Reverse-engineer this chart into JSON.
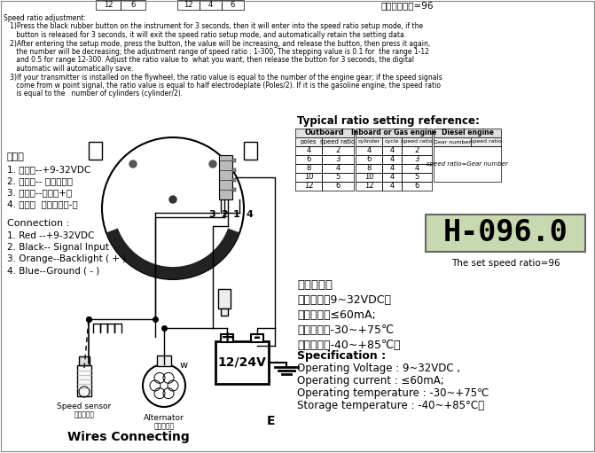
{
  "bg_color": "#ffffff",
  "title": "Wires Connecting",
  "subtitle_e": "E",
  "top_table_left_headers": [
    "12",
    "6"
  ],
  "top_table_right_headers": [
    "12",
    "4",
    "6"
  ],
  "top_right_text": "表示设置速比=96",
  "speed_ratio_lines": [
    "Speed ratio adjustment:",
    "   1)Press the black rubber button on the instrument for 3 seconds, then it will enter into the speed ratio setup mode, if the",
    "      button is released for 3 seconds, it will exit the speed ratio setup mode, and automatically retain the setting data.",
    "   2)After entering the setup mode, press the button, the value will be increasing, and release the button, then press it again,",
    "      the number will be decreasing; the adjustment range of speed ratio : 1-300, The stepping value is 0.1 for  the range 1-12",
    "      and 0.5 for range 12-300. Adjust the ratio value to  what you want, then release the button for 3 seconds, the digital",
    "      automatic will automatically save.",
    "   3)If your transmitter is installed on the flywheel, the ratio value is equal to the number of the engine gear; if the speed signals",
    "      come from w point signal, the ratio value is equal to half electrodeplate (Poles/2). If it is the gasoline engine, the speed ratio",
    "      is equal to the   number of cylinders (cylinder/2)."
  ],
  "chinese_header": "接线：",
  "chinese_labels": [
    "1. 红色线--+9-32VDC",
    "2. 黑色线-- 传感器信号",
    "3. 橙色线--背光（+）",
    "4. 蓝色线  电源负极（-）"
  ],
  "conn_header": "Connection :",
  "english_labels": [
    "1. Red --+9-32VDC",
    "2. Black-- Signal Input",
    "3. Orange--Backlight ( + )",
    "4. Blue--Ground ( - )"
  ],
  "speed_sensor_label": "Speed sensor",
  "speed_sensor_cn": "转速传感器",
  "alternator_label": "Alternator",
  "alternator_cn": "交流发电机",
  "w_label": "w",
  "voltage_label": "12/24V",
  "typical_title": "Typical ratio setting reference:",
  "outboard_header": "Outboard",
  "outboard_cols": [
    "poles",
    "speed ratio"
  ],
  "outboard_data": [
    [
      "4",
      "2"
    ],
    [
      "6",
      "3"
    ],
    [
      "8",
      "4"
    ],
    [
      "10",
      "5"
    ],
    [
      "12",
      "6"
    ]
  ],
  "inboard_header": "Inboard or Gas engine",
  "inboard_cols": [
    "cylinder",
    "cycle",
    "speed ratio"
  ],
  "inboard_data": [
    [
      "4",
      "4",
      "2"
    ],
    [
      "6",
      "4",
      "3"
    ],
    [
      "8",
      "4",
      "4"
    ],
    [
      "10",
      "4",
      "5"
    ],
    [
      "12",
      "4",
      "6"
    ]
  ],
  "diesel_header": "Diesel engine",
  "diesel_cols": [
    "Gear number",
    "speed ratio"
  ],
  "diesel_note": "speed ratio=Gear number",
  "display_text": "H-096.0",
  "set_ratio_text": "The set speed ratio=96",
  "tech_header_cn": "技术参数：",
  "tech_params_cn": [
    "工作电压：9~32VDC，",
    "工作电流：≤60mA;",
    "工作温度：-30~+75℃",
    "存储温度：-40~+85℃。"
  ],
  "spec_header": "Specification :",
  "spec_en": [
    "Operating Voltage : 9~32VDC ,",
    "Operating current : ≤60mA;",
    "Operating temperature : -30~+75℃",
    "Storage temperature : -40~+85°C。"
  ]
}
